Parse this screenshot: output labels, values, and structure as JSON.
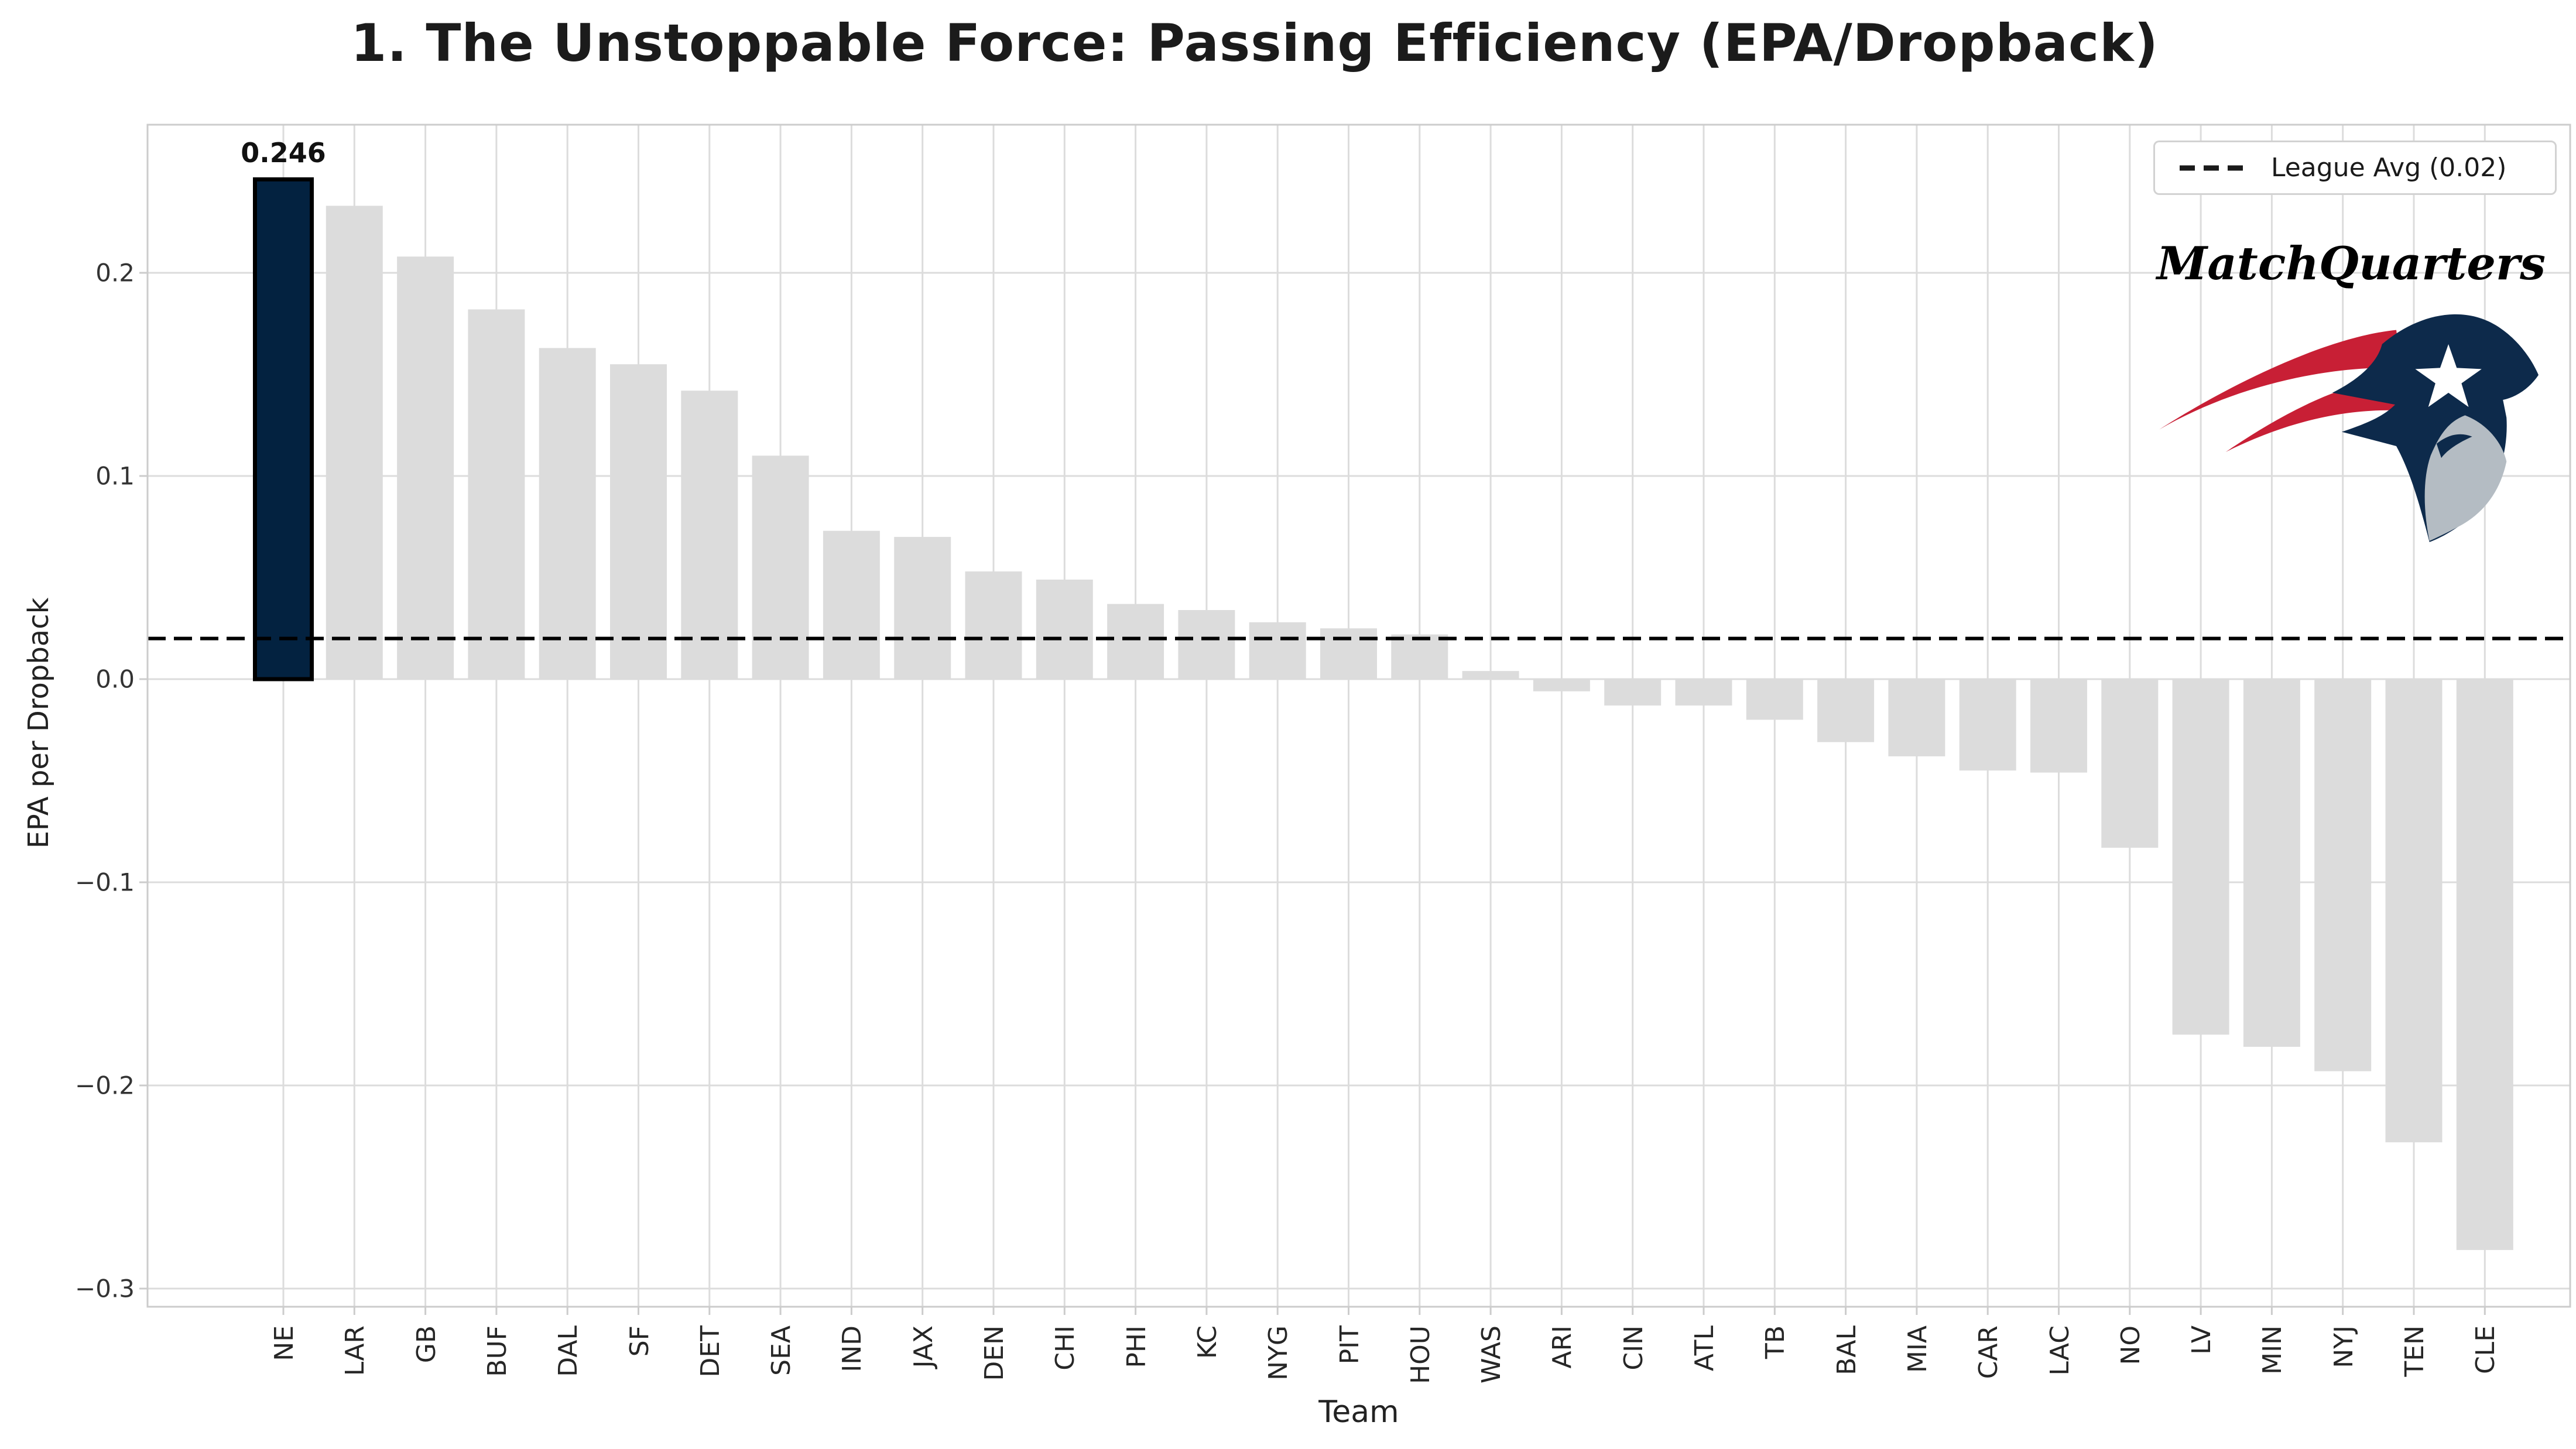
{
  "title": "1. The Unstoppable Force: Passing Efficiency (EPA/Dropback)",
  "watermark": "MatchQuarters",
  "legend": {
    "label": "League Avg (0.02)",
    "dash_icon": "dashed-line"
  },
  "annotation": {
    "label": "0.246",
    "team": "NE"
  },
  "axes": {
    "xlabel": "Team",
    "ylabel": "EPA per Dropback",
    "ytick_labels": [
      "0.2",
      "0.1",
      "0.0",
      "−0.1",
      "−0.2",
      "−0.3"
    ]
  },
  "chart_data": {
    "type": "bar",
    "title": "1. The Unstoppable Force: Passing Efficiency (EPA/Dropback)",
    "xlabel": "Team",
    "ylabel": "EPA per Dropback",
    "categories": [
      "NE",
      "LAR",
      "GB",
      "BUF",
      "DAL",
      "SF",
      "DET",
      "SEA",
      "IND",
      "JAX",
      "DEN",
      "CHI",
      "PHI",
      "KC",
      "NYG",
      "PIT",
      "HOU",
      "WAS",
      "ARI",
      "CIN",
      "ATL",
      "TB",
      "BAL",
      "MIA",
      "CAR",
      "LAC",
      "NO",
      "LV",
      "MIN",
      "NYJ",
      "TEN",
      "CLE"
    ],
    "values": [
      0.246,
      0.233,
      0.208,
      0.182,
      0.163,
      0.155,
      0.142,
      0.11,
      0.073,
      0.07,
      0.053,
      0.049,
      0.037,
      0.034,
      0.028,
      0.025,
      0.022,
      0.004,
      -0.006,
      -0.013,
      -0.013,
      -0.02,
      -0.031,
      -0.038,
      -0.045,
      -0.046,
      -0.083,
      -0.175,
      -0.181,
      -0.193,
      -0.228,
      -0.281
    ],
    "highlighted_category": "NE",
    "highlight_value_label": "0.246",
    "league_avg": 0.02,
    "yticks": [
      0.2,
      0.1,
      0.0,
      -0.1,
      -0.2,
      -0.3
    ],
    "ylim": [
      -0.309,
      0.278
    ],
    "grid": true,
    "legend_position": "upper right",
    "legend_entries": [
      "League Avg (0.02)"
    ]
  },
  "colors": {
    "bar_default": "#dcdcdc",
    "bar_highlight": "#032240",
    "bar_highlight_edge": "#000000",
    "league_avg_line": "#000000",
    "grid_line": "#dcdcdc",
    "spine": "#cccccc",
    "title_text": "#1b1b1b",
    "tick_text": "#333333",
    "logo_navy": "#0d2a4b",
    "logo_red": "#c81f35",
    "logo_silver": "#b4bcc3",
    "background": "#ffffff"
  }
}
